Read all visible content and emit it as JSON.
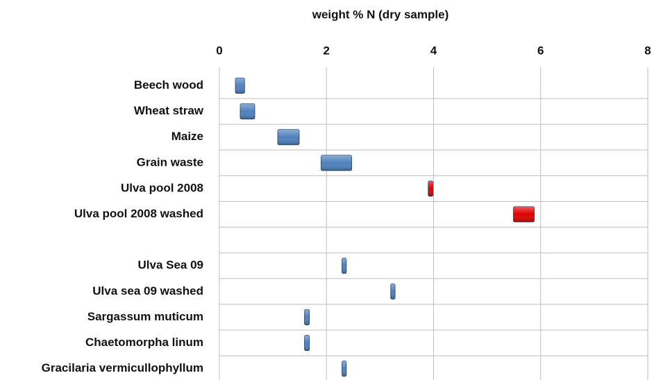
{
  "chart_data": {
    "type": "range_bar",
    "title": "weight % N  (dry sample)",
    "categories": [
      "Beech wood",
      "Wheat straw",
      "Maize",
      "Grain waste",
      "Ulva pool 2008",
      "Ulva pool 2008 washed",
      null,
      "Ulva Sea 09",
      "Ulva sea 09 washed",
      "Sargassum muticum",
      "Chaetomorpha linum",
      "Gracilaria vermicullophyllum"
    ],
    "low": [
      0.3,
      0.39,
      1.09,
      1.9,
      3.9,
      5.49,
      null,
      2.29,
      3.2,
      1.59,
      1.59,
      2.29
    ],
    "high": [
      0.47,
      0.66,
      1.49,
      2.47,
      3.99,
      5.88,
      null,
      2.37,
      3.28,
      1.68,
      1.68,
      2.37
    ],
    "colors": [
      "#4f81bd",
      "#4f81bd",
      "#4f81bd",
      "#4f81bd",
      "#e00000",
      "#e00000",
      null,
      "#4f81bd",
      "#4f81bd",
      "#4f81bd",
      "#4f81bd",
      "#4f81bd"
    ],
    "xlim": [
      0,
      8
    ],
    "xticks": [
      0,
      2,
      4,
      6,
      8
    ],
    "grid": true
  }
}
